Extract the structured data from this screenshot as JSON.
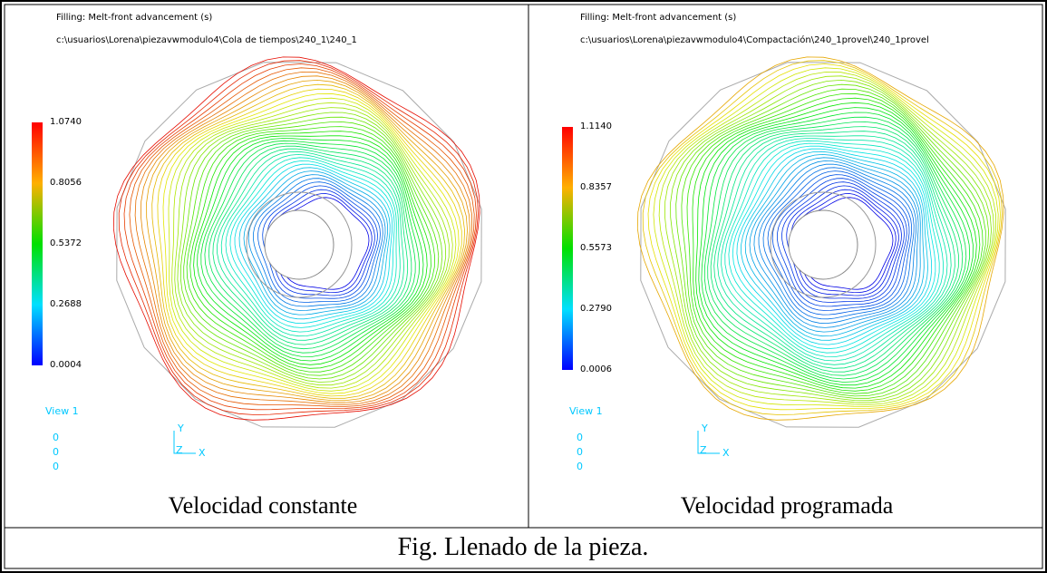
{
  "panels": [
    {
      "title": "Filling: Melt-front advancement (s)",
      "path": "c:\\usuarios\\Lorena\\piezavwmodulo4\\Cola de tiempos\\240_1\\240_1",
      "scale_labels": [
        "1.0740",
        "0.8056",
        "0.5372",
        "0.2688",
        "0.0004"
      ],
      "view": "View 1",
      "view_values": [
        "0",
        "0",
        "0"
      ],
      "axes": [
        "Y",
        "Z",
        "X"
      ],
      "caption": "Velocidad constante"
    },
    {
      "title": "Filling: Melt-front advancement (s)",
      "path": "c:\\usuarios\\Lorena\\piezavwmodulo4\\Compactación\\240_1provel\\240_1provel",
      "scale_labels": [
        "1.1140",
        "0.8357",
        "0.5573",
        "0.2790",
        "0.0006"
      ],
      "view": "View 1",
      "view_values": [
        "0",
        "0",
        "0"
      ],
      "axes": [
        "Y",
        "Z",
        "X"
      ],
      "caption": "Velocidad programada"
    }
  ],
  "figure_caption": "Fig. Llenado de la pieza."
}
